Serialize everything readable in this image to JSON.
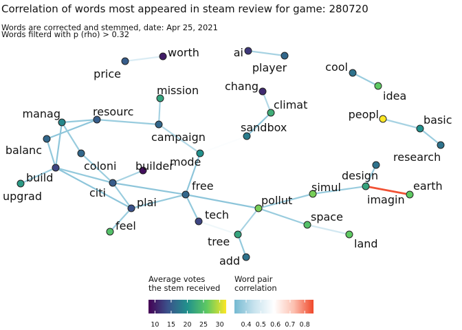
{
  "header": {
    "title": "Correlation of words most appeared in steam review for game: 280720",
    "subtitle_line1": "Words are corrected and stemmed, date: Apr 25, 2021",
    "subtitle_line2": "Words filterd with p (rho) > 0.32"
  },
  "legend": {
    "votes_title": "Average votes\nthe stem received",
    "votes_ticks": [
      "10",
      "15",
      "20",
      "25",
      "30"
    ],
    "votes_range": [
      8,
      32
    ],
    "votes_colors": [
      "#440154",
      "#3b528b",
      "#21918c",
      "#5ec962",
      "#fde725"
    ],
    "corr_title": "Word pair\ncorrelation",
    "corr_ticks": [
      "0.4",
      "0.5",
      "0.6",
      "0.7",
      "0.8"
    ],
    "corr_range": [
      0.32,
      0.86
    ],
    "corr_colors": [
      "#74b9d1",
      "#c8e3ee",
      "#ffffff",
      "#fcc0b0",
      "#f0482a"
    ]
  },
  "nodes": [
    {
      "id": "worth",
      "label": "worth",
      "votes": 10
    },
    {
      "id": "price",
      "label": "price",
      "votes": 15
    },
    {
      "id": "ai",
      "label": "ai",
      "votes": 12
    },
    {
      "id": "player",
      "label": "player",
      "votes": 16
    },
    {
      "id": "cool",
      "label": "cool",
      "votes": 17
    },
    {
      "id": "idea",
      "label": "idea",
      "votes": 26
    },
    {
      "id": "mission",
      "label": "mission",
      "votes": 22
    },
    {
      "id": "chang",
      "label": "chang",
      "votes": 11
    },
    {
      "id": "climat",
      "label": "climat",
      "votes": 23
    },
    {
      "id": "peopl",
      "label": "peopl",
      "votes": 32
    },
    {
      "id": "basic",
      "label": "basic",
      "votes": 20
    },
    {
      "id": "manag",
      "label": "manag",
      "votes": 19
    },
    {
      "id": "resourc",
      "label": "resourc",
      "votes": 15
    },
    {
      "id": "sandbox",
      "label": "sandbox",
      "votes": 18
    },
    {
      "id": "campaign",
      "label": "campaign",
      "votes": 16
    },
    {
      "id": "research",
      "label": "research",
      "votes": 17
    },
    {
      "id": "balanc",
      "label": "balanc",
      "votes": 16
    },
    {
      "id": "mode",
      "label": "mode",
      "votes": 20
    },
    {
      "id": "coloni",
      "label": "coloni",
      "votes": 16
    },
    {
      "id": "builder",
      "label": "builder",
      "votes": 9
    },
    {
      "id": "build",
      "label": "build",
      "votes": 13
    },
    {
      "id": "design",
      "label": "design",
      "votes": 17
    },
    {
      "id": "upgrad",
      "label": "upgrad",
      "votes": 21
    },
    {
      "id": "citi",
      "label": "citi",
      "votes": 15
    },
    {
      "id": "free",
      "label": "free",
      "votes": 16
    },
    {
      "id": "simul",
      "label": "simul",
      "votes": 27
    },
    {
      "id": "earth",
      "label": "earth",
      "votes": 26
    },
    {
      "id": "imagin",
      "label": "imagin",
      "votes": 22
    },
    {
      "id": "plai",
      "label": "plai",
      "votes": 14
    },
    {
      "id": "pollut",
      "label": "pollut",
      "votes": 27
    },
    {
      "id": "tech",
      "label": "tech",
      "votes": 13
    },
    {
      "id": "space",
      "label": "space",
      "votes": 25
    },
    {
      "id": "feel",
      "label": "feel",
      "votes": 25
    },
    {
      "id": "land",
      "label": "land",
      "votes": 26
    },
    {
      "id": "tree",
      "label": "tree",
      "votes": 22
    },
    {
      "id": "add",
      "label": "add",
      "votes": 17
    }
  ],
  "edges": [
    {
      "from": "price",
      "to": "worth",
      "corr": 0.5
    },
    {
      "from": "ai",
      "to": "player",
      "corr": 0.4
    },
    {
      "from": "cool",
      "to": "idea",
      "corr": 0.38
    },
    {
      "from": "chang",
      "to": "climat",
      "corr": 0.42
    },
    {
      "from": "climat",
      "to": "sandbox",
      "corr": 0.36
    },
    {
      "from": "peopl",
      "to": "basic",
      "corr": 0.4
    },
    {
      "from": "basic",
      "to": "research",
      "corr": 0.38
    },
    {
      "from": "mission",
      "to": "campaign",
      "corr": 0.4
    },
    {
      "from": "resourc",
      "to": "campaign",
      "corr": 0.38
    },
    {
      "from": "campaign",
      "to": "mode",
      "corr": 0.42
    },
    {
      "from": "sandbox",
      "to": "mode",
      "corr": 0.58
    },
    {
      "from": "manag",
      "to": "resourc",
      "corr": 0.37
    },
    {
      "from": "balanc",
      "to": "resourc",
      "corr": 0.36
    },
    {
      "from": "manag",
      "to": "build",
      "corr": 0.36
    },
    {
      "from": "manag",
      "to": "coloni",
      "corr": 0.38
    },
    {
      "from": "balanc",
      "to": "build",
      "corr": 0.37
    },
    {
      "from": "coloni",
      "to": "citi",
      "corr": 0.38
    },
    {
      "from": "build",
      "to": "upgrad",
      "corr": 0.38
    },
    {
      "from": "build",
      "to": "citi",
      "corr": 0.37
    },
    {
      "from": "builder",
      "to": "citi",
      "corr": 0.4
    },
    {
      "from": "citi",
      "to": "free",
      "corr": 0.36
    },
    {
      "from": "citi",
      "to": "plai",
      "corr": 0.38
    },
    {
      "from": "build",
      "to": "plai",
      "corr": 0.36
    },
    {
      "from": "mode",
      "to": "free",
      "corr": 0.36
    },
    {
      "from": "free",
      "to": "plai",
      "corr": 0.37
    },
    {
      "from": "plai",
      "to": "feel",
      "corr": 0.38
    },
    {
      "from": "free",
      "to": "tech",
      "corr": 0.37
    },
    {
      "from": "free",
      "to": "pollut",
      "corr": 0.36
    },
    {
      "from": "tech",
      "to": "tree",
      "corr": 0.55
    },
    {
      "from": "pollut",
      "to": "simul",
      "corr": 0.38
    },
    {
      "from": "pollut",
      "to": "space",
      "corr": 0.38
    },
    {
      "from": "pollut",
      "to": "tree",
      "corr": 0.4
    },
    {
      "from": "tree",
      "to": "add",
      "corr": 0.37
    },
    {
      "from": "space",
      "to": "land",
      "corr": 0.48
    },
    {
      "from": "simul",
      "to": "imagin",
      "corr": 0.38
    },
    {
      "from": "design",
      "to": "imagin",
      "corr": 0.37
    },
    {
      "from": "imagin",
      "to": "earth",
      "corr": 0.85
    }
  ]
}
